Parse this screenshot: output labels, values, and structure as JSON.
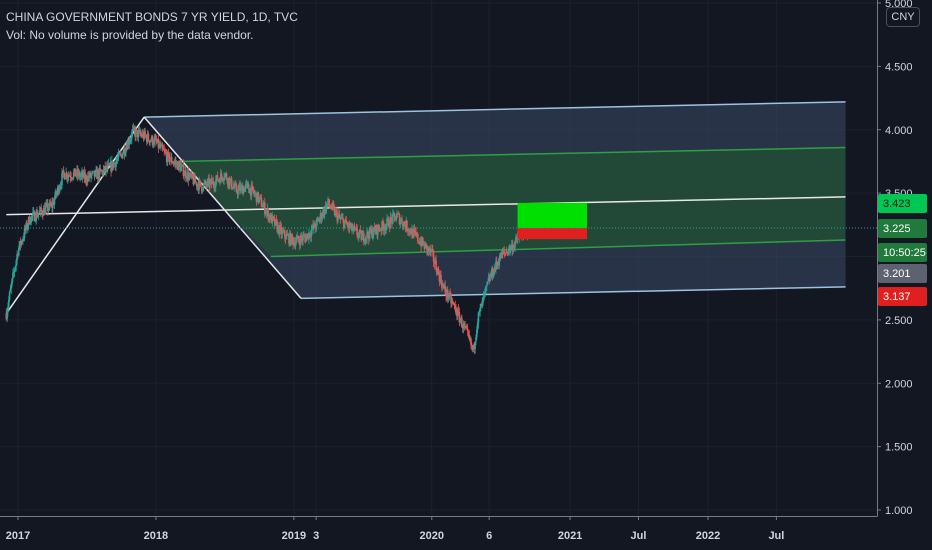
{
  "header": {
    "title": "CHINA GOVERNMENT BONDS 7 YR YIELD, 1D, TVC",
    "volume_note": "Vol: No volume is provided by the data vendor."
  },
  "currency_button": "CNY",
  "colors": {
    "background": "#131722",
    "up": "#26a69a",
    "down": "#ef5350",
    "channel_outer_fill": "#3a4a66",
    "channel_outer_line": "#9cc4de",
    "channel_inner_fill": "#1e5a2a",
    "channel_inner_line": "#2ea043",
    "trend_line": "#e8e8e8",
    "target_green": "#00e000",
    "target_red": "#e02020"
  },
  "chart_data": {
    "type": "candlestick",
    "ylim": [
      1.0,
      5.0
    ],
    "y_ticks": [
      "5.000",
      "4.500",
      "4.000",
      "3.500",
      "3.000",
      "2.500",
      "2.000",
      "1.500",
      "1.000"
    ],
    "x_ticks": [
      "2017",
      "2018",
      "2019",
      "3",
      "2020",
      "6",
      "2021",
      "Jul",
      "2022",
      "Jul"
    ],
    "close_series": [
      [
        "2016-12-01",
        2.55
      ],
      [
        "2017-01-01",
        3.05
      ],
      [
        "2017-02-01",
        3.3
      ],
      [
        "2017-03-01",
        3.35
      ],
      [
        "2017-04-01",
        3.4
      ],
      [
        "2017-05-01",
        3.65
      ],
      [
        "2017-06-01",
        3.65
      ],
      [
        "2017-07-01",
        3.62
      ],
      [
        "2017-08-01",
        3.65
      ],
      [
        "2017-09-01",
        3.7
      ],
      [
        "2017-10-01",
        3.8
      ],
      [
        "2017-11-01",
        3.98
      ],
      [
        "2017-12-01",
        3.95
      ],
      [
        "2018-01-01",
        3.9
      ],
      [
        "2018-02-01",
        3.78
      ],
      [
        "2018-03-01",
        3.72
      ],
      [
        "2018-04-01",
        3.62
      ],
      [
        "2018-05-01",
        3.55
      ],
      [
        "2018-06-01",
        3.58
      ],
      [
        "2018-07-01",
        3.65
      ],
      [
        "2018-08-01",
        3.52
      ],
      [
        "2018-09-01",
        3.55
      ],
      [
        "2018-10-01",
        3.45
      ],
      [
        "2018-11-01",
        3.3
      ],
      [
        "2018-12-01",
        3.18
      ],
      [
        "2019-01-01",
        3.12
      ],
      [
        "2019-02-01",
        3.15
      ],
      [
        "2019-03-01",
        3.25
      ],
      [
        "2019-04-01",
        3.42
      ],
      [
        "2019-05-01",
        3.3
      ],
      [
        "2019-06-01",
        3.22
      ],
      [
        "2019-07-01",
        3.15
      ],
      [
        "2019-08-01",
        3.2
      ],
      [
        "2019-09-01",
        3.25
      ],
      [
        "2019-10-01",
        3.32
      ],
      [
        "2019-11-01",
        3.22
      ],
      [
        "2019-12-01",
        3.12
      ],
      [
        "2020-01-01",
        3.02
      ],
      [
        "2020-02-01",
        2.75
      ],
      [
        "2020-03-01",
        2.6
      ],
      [
        "2020-04-01",
        2.4
      ],
      [
        "2020-04-20",
        2.25
      ],
      [
        "2020-05-01",
        2.5
      ],
      [
        "2020-06-01",
        2.82
      ],
      [
        "2020-07-01",
        3.0
      ],
      [
        "2020-08-01",
        3.08
      ],
      [
        "2020-09-01",
        3.2
      ],
      [
        "2020-10-01",
        3.22
      ]
    ],
    "price_labels": [
      {
        "text": "3.423",
        "value": 3.423,
        "bg": "#00c853",
        "fg": "#131722"
      },
      {
        "text": "3.225",
        "value": 3.225,
        "bg": "#1f7a3c",
        "fg": "#ffffff"
      },
      {
        "text": "10:50:25",
        "value": 3.12,
        "bg": "#1f7a3c",
        "fg": "#ffffff"
      },
      {
        "text": "3.201",
        "value": 3.201,
        "bg": "#5c6270",
        "fg": "#ffffff"
      },
      {
        "text": "3.137",
        "value": 3.137,
        "bg": "#e02020",
        "fg": "#ffffff"
      }
    ],
    "current_price": 3.225,
    "trend_line": {
      "from": [
        "2016-12-01",
        3.33
      ],
      "to": [
        "2022-12-31",
        3.47
      ]
    },
    "peak_triangle": {
      "left": [
        "2016-12-01",
        2.55
      ],
      "peak": [
        "2017-12-01",
        4.1
      ],
      "right": [
        "2019-01-20",
        2.67
      ]
    },
    "outer_channel": {
      "top": [
        [
          "2017-12-01",
          4.1
        ],
        [
          "2022-12-31",
          4.22
        ]
      ],
      "bottom": [
        [
          "2019-01-20",
          2.67
        ],
        [
          "2022-12-31",
          2.76
        ]
      ]
    },
    "inner_channel": {
      "top": [
        [
          "2018-03-01",
          3.75
        ],
        [
          "2022-12-31",
          3.86
        ]
      ],
      "bottom": [
        [
          "2018-11-01",
          3.0
        ],
        [
          "2022-12-31",
          3.13
        ]
      ]
    },
    "target_zone": {
      "x": [
        "2020-08-15",
        "2021-02-15"
      ],
      "profit": [
        3.225,
        3.423
      ],
      "loss": [
        3.137,
        3.225
      ]
    }
  }
}
